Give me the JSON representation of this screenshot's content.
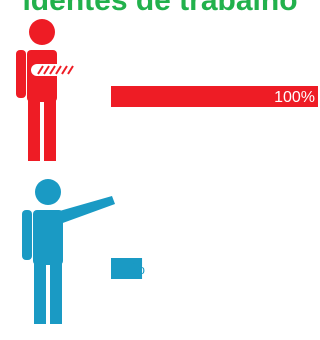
{
  "title": "identes de trabalho",
  "colors": {
    "title": "#22b14c",
    "injured": "#ee1c25",
    "healthy": "#1a9ac4",
    "white": "#ffffff",
    "label_injured": "#ffffff",
    "label_healthy": "#1a9ac4"
  },
  "icons": [
    "injured-person-arm-sling-icon",
    "person-pointing-icon"
  ],
  "chart_data": {
    "type": "bar",
    "orientation": "horizontal",
    "categories": [
      "injured",
      "healthy"
    ],
    "values": [
      100,
      15
    ],
    "value_labels": [
      "100%",
      "15%"
    ],
    "xlim": [
      0,
      100
    ],
    "grid": false,
    "legend": "none"
  }
}
